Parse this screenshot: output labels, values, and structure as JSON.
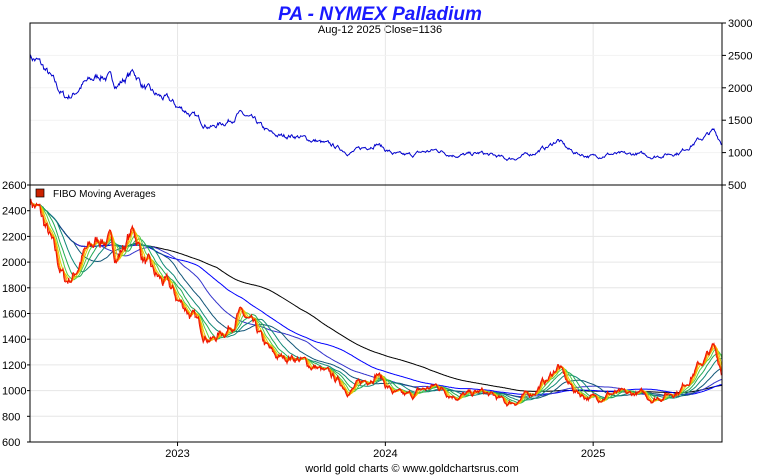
{
  "header": {
    "title": "PA  -  NYMEX Palladium",
    "subtitle": "Aug-12  2025   Close=1136"
  },
  "footer": {
    "text": "world gold charts © www.goldchartsrus.com"
  },
  "chart_data": [
    {
      "type": "line",
      "panel": "top",
      "title": "PA  -  NYMEX Palladium",
      "ylim": [
        500,
        3000
      ],
      "y_ticks": [
        "3000",
        "2500",
        "2000",
        "1500",
        "1000",
        "500"
      ],
      "y_axis_side": "right",
      "x_ticks": [
        "2023",
        "2024",
        "2025"
      ],
      "series": [
        {
          "color": "#0000cc",
          "points": [
            {
              "x": 2022.29,
              "y": 2500
            },
            {
              "x": 2022.33,
              "y": 2400
            },
            {
              "x": 2022.38,
              "y": 2200
            },
            {
              "x": 2022.42,
              "y": 2000
            },
            {
              "x": 2022.46,
              "y": 1850
            },
            {
              "x": 2022.5,
              "y": 1900
            },
            {
              "x": 2022.54,
              "y": 2050
            },
            {
              "x": 2022.58,
              "y": 2100
            },
            {
              "x": 2022.63,
              "y": 2200
            },
            {
              "x": 2022.67,
              "y": 2150
            },
            {
              "x": 2022.71,
              "y": 2050
            },
            {
              "x": 2022.75,
              "y": 2150
            },
            {
              "x": 2022.79,
              "y": 2250
            },
            {
              "x": 2022.83,
              "y": 2050
            },
            {
              "x": 2022.88,
              "y": 1900
            },
            {
              "x": 2022.92,
              "y": 1850
            },
            {
              "x": 2022.96,
              "y": 1800
            },
            {
              "x": 2023.0,
              "y": 1700
            },
            {
              "x": 2023.04,
              "y": 1650
            },
            {
              "x": 2023.08,
              "y": 1550
            },
            {
              "x": 2023.13,
              "y": 1450
            },
            {
              "x": 2023.17,
              "y": 1400
            },
            {
              "x": 2023.21,
              "y": 1450
            },
            {
              "x": 2023.25,
              "y": 1500
            },
            {
              "x": 2023.29,
              "y": 1600
            },
            {
              "x": 2023.33,
              "y": 1550
            },
            {
              "x": 2023.38,
              "y": 1450
            },
            {
              "x": 2023.42,
              "y": 1350
            },
            {
              "x": 2023.46,
              "y": 1270
            },
            {
              "x": 2023.5,
              "y": 1250
            },
            {
              "x": 2023.54,
              "y": 1270
            },
            {
              "x": 2023.58,
              "y": 1250
            },
            {
              "x": 2023.63,
              "y": 1200
            },
            {
              "x": 2023.67,
              "y": 1180
            },
            {
              "x": 2023.71,
              "y": 1130
            },
            {
              "x": 2023.75,
              "y": 1100
            },
            {
              "x": 2023.79,
              "y": 1050
            },
            {
              "x": 2023.83,
              "y": 1000
            },
            {
              "x": 2023.88,
              "y": 1050
            },
            {
              "x": 2023.92,
              "y": 1100
            },
            {
              "x": 2023.96,
              "y": 1150
            },
            {
              "x": 2024.0,
              "y": 1050
            },
            {
              "x": 2024.04,
              "y": 980
            },
            {
              "x": 2024.08,
              "y": 950
            },
            {
              "x": 2024.13,
              "y": 960
            },
            {
              "x": 2024.17,
              "y": 1000
            },
            {
              "x": 2024.21,
              "y": 1020
            },
            {
              "x": 2024.25,
              "y": 1040
            },
            {
              "x": 2024.29,
              "y": 1000
            },
            {
              "x": 2024.33,
              "y": 970
            },
            {
              "x": 2024.38,
              "y": 960
            },
            {
              "x": 2024.42,
              "y": 970
            },
            {
              "x": 2024.46,
              "y": 990
            },
            {
              "x": 2024.5,
              "y": 960
            },
            {
              "x": 2024.54,
              "y": 940
            },
            {
              "x": 2024.58,
              "y": 900
            },
            {
              "x": 2024.63,
              "y": 920
            },
            {
              "x": 2024.67,
              "y": 950
            },
            {
              "x": 2024.71,
              "y": 990
            },
            {
              "x": 2024.75,
              "y": 1050
            },
            {
              "x": 2024.79,
              "y": 1100
            },
            {
              "x": 2024.83,
              "y": 1200
            },
            {
              "x": 2024.88,
              "y": 1050
            },
            {
              "x": 2024.92,
              "y": 990
            },
            {
              "x": 2024.96,
              "y": 960
            },
            {
              "x": 2025.0,
              "y": 940
            },
            {
              "x": 2025.04,
              "y": 960
            },
            {
              "x": 2025.08,
              "y": 980
            },
            {
              "x": 2025.13,
              "y": 970
            },
            {
              "x": 2025.17,
              "y": 960
            },
            {
              "x": 2025.21,
              "y": 980
            },
            {
              "x": 2025.25,
              "y": 960
            },
            {
              "x": 2025.29,
              "y": 940
            },
            {
              "x": 2025.33,
              "y": 960
            },
            {
              "x": 2025.38,
              "y": 990
            },
            {
              "x": 2025.42,
              "y": 1010
            },
            {
              "x": 2025.46,
              "y": 1100
            },
            {
              "x": 2025.5,
              "y": 1180
            },
            {
              "x": 2025.54,
              "y": 1250
            },
            {
              "x": 2025.58,
              "y": 1330
            },
            {
              "x": 2025.61,
              "y": 1200
            },
            {
              "x": 2025.62,
              "y": 1136
            }
          ]
        }
      ]
    },
    {
      "type": "line",
      "panel": "bottom",
      "title": "",
      "legend": {
        "entries": [
          "FIBO  Moving  Averages"
        ],
        "placement": "top-left",
        "swatch_color": "#cc2200"
      },
      "ylim": [
        600,
        2600
      ],
      "y_ticks": [
        "2600",
        "2400",
        "2200",
        "2000",
        "1800",
        "1600",
        "1400",
        "1200",
        "1000",
        "800",
        "600"
      ],
      "y_axis_side": "left",
      "x_ticks": [
        "2023",
        "2024",
        "2025"
      ],
      "x_range": [
        2022.29,
        2025.62
      ],
      "price_color": "#ee1100",
      "ma_periods": [
        3,
        5,
        8,
        13,
        21,
        34,
        55,
        89,
        144,
        233
      ],
      "ma_colors": [
        "#ff5500",
        "#ffaa00",
        "#ddcc00",
        "#55cc44",
        "#22aa55",
        "#118877",
        "#115577",
        "#3333cc",
        "#0000ff",
        "#000000"
      ]
    }
  ]
}
